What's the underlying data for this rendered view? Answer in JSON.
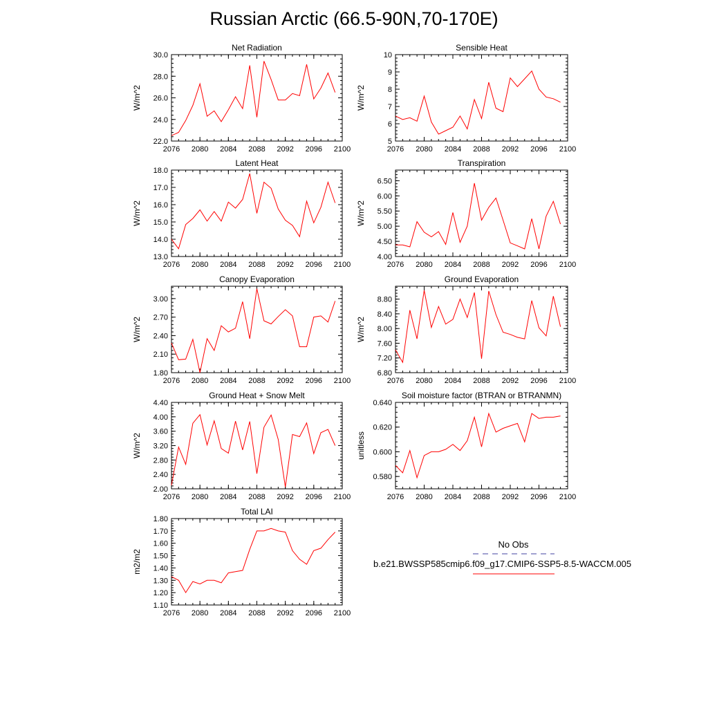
{
  "title": "Russian Arctic (66.5-90N,70-170E)",
  "legend": {
    "obs_label": "No Obs",
    "obs_color": "#4040a0",
    "case_label": "b.e21.BWSSP585cmip6.f09_g17.CMIP6-SSP5-8.5-WACCM.005",
    "case_color": "#ff0000"
  },
  "chart_data": [
    {
      "type": "line",
      "title": "Net Radiation",
      "ylabel": "W/m^2",
      "xlim": [
        2076,
        2100
      ],
      "ylim": [
        22.0,
        30.0
      ],
      "xticks": [
        "2076",
        "2080",
        "2084",
        "2088",
        "2092",
        "2096",
        "2100"
      ],
      "yticks": [
        "22.0",
        "24.0",
        "26.0",
        "28.0",
        "30.0"
      ],
      "x": [
        2076,
        2077,
        2078,
        2079,
        2080,
        2081,
        2082,
        2083,
        2084,
        2085,
        2086,
        2087,
        2088,
        2089,
        2090,
        2091,
        2092,
        2093,
        2094,
        2095,
        2096,
        2097,
        2098,
        2099
      ],
      "values": [
        22.5,
        22.8,
        23.9,
        25.3,
        27.3,
        24.3,
        24.8,
        23.8,
        24.9,
        26.1,
        25.0,
        29.0,
        24.2,
        29.4,
        27.7,
        25.8,
        25.8,
        26.4,
        26.2,
        29.1,
        25.9,
        26.9,
        28.3,
        26.5
      ]
    },
    {
      "type": "line",
      "title": "Sensible Heat",
      "ylabel": "W/m^2",
      "xlim": [
        2076,
        2100
      ],
      "ylim": [
        5,
        10
      ],
      "xticks": [
        "2076",
        "2080",
        "2084",
        "2088",
        "2092",
        "2096",
        "2100"
      ],
      "yticks": [
        "5",
        "6",
        "7",
        "8",
        "9",
        "10"
      ],
      "x": [
        2076,
        2077,
        2078,
        2079,
        2080,
        2081,
        2082,
        2083,
        2084,
        2085,
        2086,
        2087,
        2088,
        2089,
        2090,
        2091,
        2092,
        2093,
        2094,
        2095,
        2096,
        2097,
        2098,
        2099
      ],
      "values": [
        6.45,
        6.25,
        6.35,
        6.15,
        7.6,
        6.1,
        5.4,
        5.6,
        5.8,
        6.45,
        5.7,
        7.4,
        6.3,
        8.4,
        6.9,
        6.7,
        8.65,
        8.15,
        8.6,
        9.05,
        8.0,
        7.55,
        7.45,
        7.25
      ]
    },
    {
      "type": "line",
      "title": "Latent Heat",
      "ylabel": "W/m^2",
      "xlim": [
        2076,
        2100
      ],
      "ylim": [
        13.0,
        18.0
      ],
      "xticks": [
        "2076",
        "2080",
        "2084",
        "2088",
        "2092",
        "2096",
        "2100"
      ],
      "yticks": [
        "13.0",
        "14.0",
        "15.0",
        "16.0",
        "17.0",
        "18.0"
      ],
      "x": [
        2076,
        2077,
        2078,
        2079,
        2080,
        2081,
        2082,
        2083,
        2084,
        2085,
        2086,
        2087,
        2088,
        2089,
        2090,
        2091,
        2092,
        2093,
        2094,
        2095,
        2096,
        2097,
        2098,
        2099
      ],
      "values": [
        14.0,
        13.45,
        14.85,
        15.2,
        15.7,
        15.05,
        15.6,
        15.05,
        16.15,
        15.8,
        16.3,
        17.8,
        15.5,
        17.3,
        16.95,
        15.75,
        15.1,
        14.8,
        14.15,
        16.2,
        14.95,
        15.85,
        17.3,
        16.1
      ]
    },
    {
      "type": "line",
      "title": "Transpiration",
      "ylabel": "W/m^2",
      "xlim": [
        2076,
        2100
      ],
      "ylim": [
        4.0,
        6.85
      ],
      "xticks": [
        "2076",
        "2080",
        "2084",
        "2088",
        "2092",
        "2096",
        "2100"
      ],
      "yticks": [
        "4.00",
        "4.50",
        "5.00",
        "5.50",
        "6.00",
        "6.50"
      ],
      "x": [
        2076,
        2077,
        2078,
        2079,
        2080,
        2081,
        2082,
        2083,
        2084,
        2085,
        2086,
        2087,
        2088,
        2089,
        2090,
        2091,
        2092,
        2093,
        2094,
        2095,
        2096,
        2097,
        2098,
        2099
      ],
      "values": [
        4.38,
        4.38,
        4.32,
        5.15,
        4.8,
        4.65,
        4.82,
        4.4,
        5.45,
        4.47,
        5.0,
        6.42,
        5.2,
        5.62,
        5.93,
        5.2,
        4.45,
        4.35,
        4.25,
        5.25,
        4.25,
        5.33,
        5.82,
        5.07
      ]
    },
    {
      "type": "line",
      "title": "Canopy Evaporation",
      "ylabel": "W/m^2",
      "xlim": [
        2076,
        2100
      ],
      "ylim": [
        1.8,
        3.2
      ],
      "xticks": [
        "2076",
        "2080",
        "2084",
        "2088",
        "2092",
        "2096",
        "2100"
      ],
      "yticks": [
        "1.80",
        "2.10",
        "2.40",
        "2.70",
        "3.00"
      ],
      "x": [
        2076,
        2077,
        2078,
        2079,
        2080,
        2081,
        2082,
        2083,
        2084,
        2085,
        2086,
        2087,
        2088,
        2089,
        2090,
        2091,
        2092,
        2093,
        2094,
        2095,
        2096,
        2097,
        2098,
        2099
      ],
      "values": [
        2.28,
        2.01,
        2.02,
        2.34,
        1.8,
        2.35,
        2.16,
        2.56,
        2.46,
        2.52,
        2.95,
        2.35,
        3.16,
        2.64,
        2.59,
        2.71,
        2.82,
        2.72,
        2.22,
        2.22,
        2.7,
        2.72,
        2.62,
        2.96
      ]
    },
    {
      "type": "line",
      "title": "Ground Evaporation",
      "ylabel": "W/m^2",
      "xlim": [
        2076,
        2100
      ],
      "ylim": [
        6.8,
        9.15
      ],
      "xticks": [
        "2076",
        "2080",
        "2084",
        "2088",
        "2092",
        "2096",
        "2100"
      ],
      "yticks": [
        "6.80",
        "7.20",
        "7.60",
        "8.00",
        "8.40",
        "8.80"
      ],
      "x": [
        2076,
        2077,
        2078,
        2079,
        2080,
        2081,
        2082,
        2083,
        2084,
        2085,
        2086,
        2087,
        2088,
        2089,
        2090,
        2091,
        2092,
        2093,
        2094,
        2095,
        2096,
        2097,
        2098,
        2099
      ],
      "values": [
        7.42,
        7.08,
        8.5,
        7.72,
        9.04,
        8.03,
        8.6,
        8.12,
        8.25,
        8.8,
        8.3,
        8.98,
        7.18,
        9.02,
        8.38,
        7.9,
        7.84,
        7.76,
        7.72,
        8.76,
        8.02,
        7.8,
        8.88,
        8.05
      ]
    },
    {
      "type": "line",
      "title": "Ground Heat + Snow Melt",
      "ylabel": "W/m^2",
      "xlim": [
        2076,
        2100
      ],
      "ylim": [
        2.0,
        4.4
      ],
      "xticks": [
        "2076",
        "2080",
        "2084",
        "2088",
        "2092",
        "2096",
        "2100"
      ],
      "yticks": [
        "2.00",
        "2.40",
        "2.80",
        "3.20",
        "3.60",
        "4.00",
        "4.40"
      ],
      "x": [
        2076,
        2077,
        2078,
        2079,
        2080,
        2081,
        2082,
        2083,
        2084,
        2085,
        2086,
        2087,
        2088,
        2089,
        2090,
        2091,
        2092,
        2093,
        2094,
        2095,
        2096,
        2097,
        2098,
        2099
      ],
      "values": [
        2.1,
        3.16,
        2.68,
        3.82,
        4.06,
        3.22,
        3.89,
        3.12,
        2.99,
        3.88,
        3.08,
        3.87,
        2.42,
        3.71,
        4.05,
        3.37,
        2.05,
        3.51,
        3.45,
        3.83,
        2.98,
        3.56,
        3.65,
        3.2
      ]
    },
    {
      "type": "line",
      "title": "Soil moisture factor (BTRAN or BTRANMN)",
      "ylabel": "unitless",
      "xlim": [
        2076,
        2100
      ],
      "ylim": [
        0.57,
        0.64
      ],
      "xticks": [
        "2076",
        "2080",
        "2084",
        "2088",
        "2092",
        "2096",
        "2100"
      ],
      "yticks": [
        "0.580",
        "0.600",
        "0.620",
        "0.640"
      ],
      "x": [
        2076,
        2077,
        2078,
        2079,
        2080,
        2081,
        2082,
        2083,
        2084,
        2085,
        2086,
        2087,
        2088,
        2089,
        2090,
        2091,
        2092,
        2093,
        2094,
        2095,
        2096,
        2097,
        2098,
        2099
      ],
      "values": [
        0.589,
        0.583,
        0.601,
        0.579,
        0.597,
        0.6,
        0.6,
        0.602,
        0.606,
        0.601,
        0.609,
        0.628,
        0.604,
        0.631,
        0.616,
        0.619,
        0.621,
        0.623,
        0.608,
        0.631,
        0.627,
        0.628,
        0.628,
        0.629
      ]
    },
    {
      "type": "line",
      "title": "Total LAI",
      "ylabel": "m2/m2",
      "xlim": [
        2076,
        2100
      ],
      "ylim": [
        1.1,
        1.8
      ],
      "xticks": [
        "2076",
        "2080",
        "2084",
        "2088",
        "2092",
        "2096",
        "2100"
      ],
      "yticks": [
        "1.10",
        "1.20",
        "1.30",
        "1.40",
        "1.50",
        "1.60",
        "1.70",
        "1.80"
      ],
      "x": [
        2076,
        2077,
        2078,
        2079,
        2080,
        2081,
        2082,
        2083,
        2084,
        2085,
        2086,
        2087,
        2088,
        2089,
        2090,
        2091,
        2092,
        2093,
        2094,
        2095,
        2096,
        2097,
        2098,
        2099
      ],
      "values": [
        1.33,
        1.3,
        1.2,
        1.29,
        1.27,
        1.3,
        1.3,
        1.28,
        1.36,
        1.37,
        1.38,
        1.55,
        1.7,
        1.7,
        1.72,
        1.7,
        1.69,
        1.54,
        1.47,
        1.43,
        1.54,
        1.56,
        1.63,
        1.69
      ]
    }
  ]
}
